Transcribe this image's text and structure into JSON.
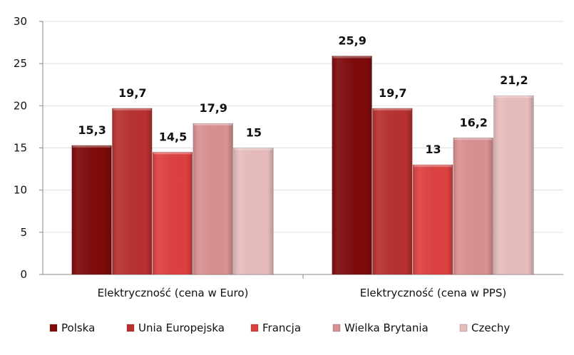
{
  "chart_data": {
    "type": "bar",
    "categories": [
      "Elektryczność (cena w Euro)",
      "Elektryczność (cena w PPS)"
    ],
    "series": [
      {
        "name": "Polska",
        "values": [
          15.3,
          25.9
        ],
        "labels": [
          "15,3",
          "25,9"
        ],
        "color": "#7e0a0a"
      },
      {
        "name": "Unia Europejska",
        "values": [
          19.7,
          19.7
        ],
        "labels": [
          "19,7",
          "19,7"
        ],
        "color": "#b8302f"
      },
      {
        "name": "Francja",
        "values": [
          14.5,
          13
        ],
        "labels": [
          "14,5",
          "13"
        ],
        "color": "#de4040"
      },
      {
        "name": "Wielka Brytania",
        "values": [
          17.9,
          16.2
        ],
        "labels": [
          "17,9",
          "16,2"
        ],
        "color": "#d99090"
      },
      {
        "name": "Czechy",
        "values": [
          15,
          21.2
        ],
        "labels": [
          "15",
          "21,2"
        ],
        "color": "#e8bcbc"
      }
    ],
    "ylim": [
      0,
      30
    ],
    "yticks": [
      0,
      5,
      10,
      15,
      20,
      25,
      30
    ],
    "grid": true,
    "legend": "bottom",
    "title": "",
    "xlabel": "",
    "ylabel": ""
  }
}
